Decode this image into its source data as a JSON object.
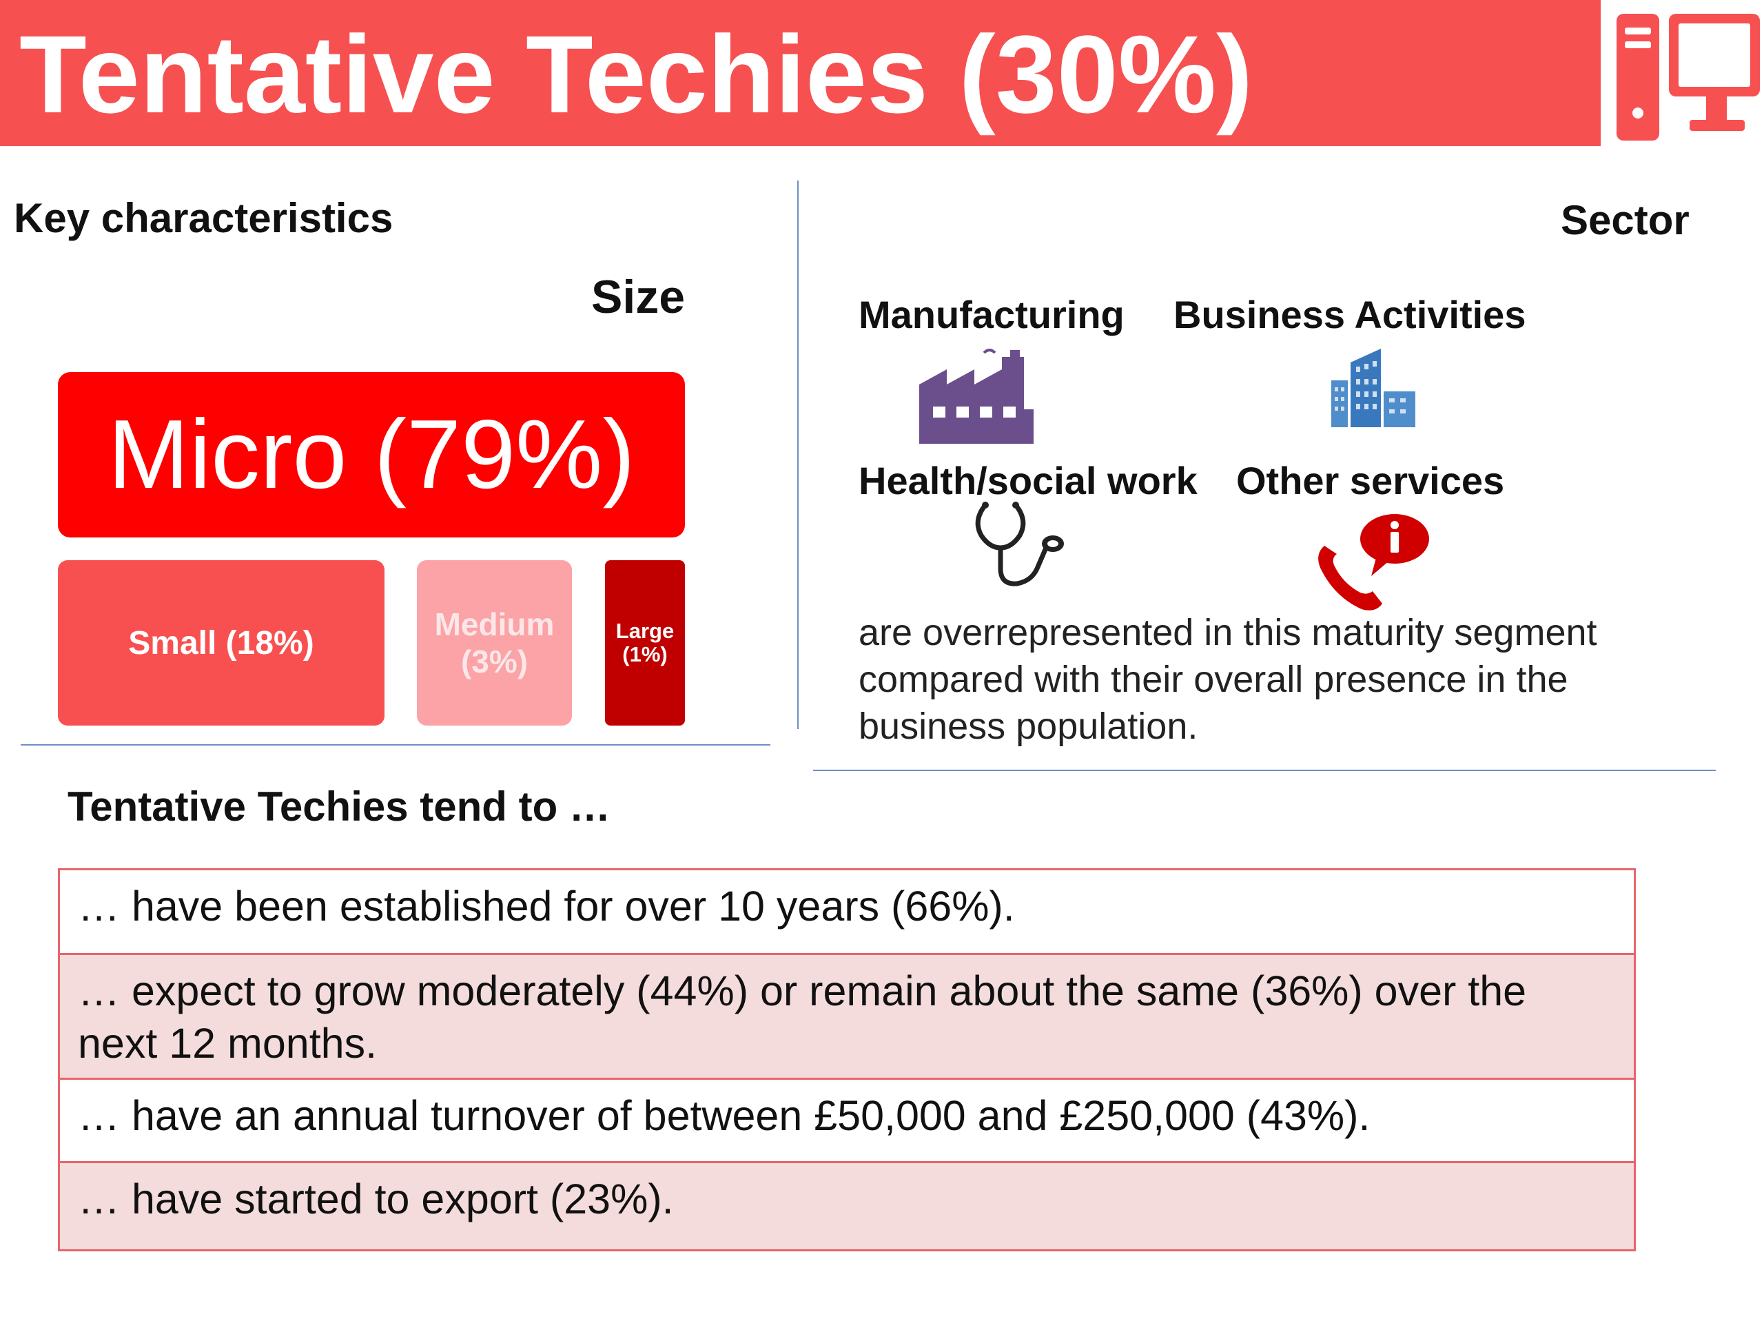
{
  "header": {
    "title": "Tentative Techies (30%)",
    "icon": "computer-icon",
    "color": "#f75050"
  },
  "key_characteristics": {
    "heading": "Key characteristics",
    "size_heading": "Size",
    "tiles": {
      "micro": {
        "label": "Micro (79%)",
        "color": "#ff0000"
      },
      "small": {
        "label": "Small (18%)",
        "color": "#f85050"
      },
      "medium": {
        "label_line1": "Medium",
        "label_line2": "(3%)",
        "color": "#fba3a7"
      },
      "large": {
        "label_line1": "Large",
        "label_line2": "(1%)",
        "color": "#c00000"
      }
    }
  },
  "sector": {
    "heading": "Sector",
    "items": [
      {
        "label": "Manufacturing",
        "icon": "factory-icon"
      },
      {
        "label": "Business Activities",
        "icon": "office-building-icon"
      },
      {
        "label": "Health/social work",
        "icon": "stethoscope-icon"
      },
      {
        "label": "Other services",
        "icon": "phone-info-icon"
      }
    ],
    "note": "are overrepresented in this maturity segment compared with their overall presence in the business population."
  },
  "tend_to": {
    "heading": "Tentative Techies tend to …",
    "rows": [
      "… have been established for over 10 years (66%).",
      "… expect to grow moderately (44%) or remain about the same (36%) over the next 12 months.",
      "… have an annual turnover of between £50,000 and £250,000 (43%).",
      "… have started to export (23%)."
    ]
  }
}
